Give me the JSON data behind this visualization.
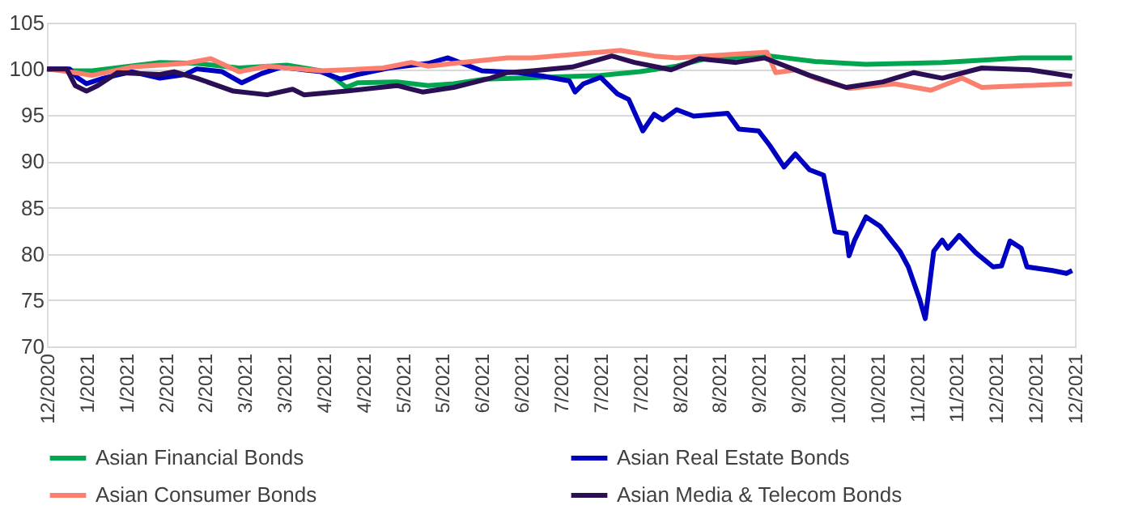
{
  "chart_data": {
    "type": "line",
    "xlim": [
      "2020-12-31",
      "2021-12-30"
    ],
    "xticks": [
      {
        "value": "2020-12-31",
        "label": "12/2020"
      },
      {
        "value": "2021-01-14",
        "label": "1/2021"
      },
      {
        "value": "2021-01-28",
        "label": "1/2021"
      },
      {
        "value": "2021-02-11",
        "label": "2/2021"
      },
      {
        "value": "2021-02-25",
        "label": "2/2021"
      },
      {
        "value": "2021-03-11",
        "label": "3/2021"
      },
      {
        "value": "2021-03-25",
        "label": "3/2021"
      },
      {
        "value": "2021-04-08",
        "label": "4/2021"
      },
      {
        "value": "2021-04-22",
        "label": "4/2021"
      },
      {
        "value": "2021-05-06",
        "label": "5/2021"
      },
      {
        "value": "2021-05-20",
        "label": "5/2021"
      },
      {
        "value": "2021-06-03",
        "label": "6/2021"
      },
      {
        "value": "2021-06-17",
        "label": "6/2021"
      },
      {
        "value": "2021-07-01",
        "label": "7/2021"
      },
      {
        "value": "2021-07-15",
        "label": "7/2021"
      },
      {
        "value": "2021-07-29",
        "label": "7/2021"
      },
      {
        "value": "2021-08-12",
        "label": "8/2021"
      },
      {
        "value": "2021-08-26",
        "label": "8/2021"
      },
      {
        "value": "2021-09-09",
        "label": "9/2021"
      },
      {
        "value": "2021-09-23",
        "label": "9/2021"
      },
      {
        "value": "2021-10-07",
        "label": "10/2021"
      },
      {
        "value": "2021-10-21",
        "label": "10/2021"
      },
      {
        "value": "2021-11-04",
        "label": "11/2021"
      },
      {
        "value": "2021-11-18",
        "label": "11/2021"
      },
      {
        "value": "2021-12-02",
        "label": "12/2021"
      },
      {
        "value": "2021-12-16",
        "label": "12/2021"
      },
      {
        "value": "2021-12-30",
        "label": "12/2021"
      }
    ],
    "ylim": [
      70,
      105
    ],
    "yticks": [
      70,
      75,
      80,
      85,
      90,
      95,
      100,
      105
    ],
    "grid": "y",
    "legend": "bottom",
    "line_style": "solid",
    "marker": "none",
    "series": [
      {
        "name": "Asian Financial Bonds",
        "color": "#00a650",
        "x": [
          "2020-12-31",
          "2021-01-08",
          "2021-01-16",
          "2021-02-09",
          "2021-02-22",
          "2021-03-09",
          "2021-03-26",
          "2021-04-07",
          "2021-04-12",
          "2021-04-16",
          "2021-04-20",
          "2021-05-04",
          "2021-05-15",
          "2021-05-24",
          "2021-06-04",
          "2021-06-16",
          "2021-07-15",
          "2021-07-29",
          "2021-08-11",
          "2021-08-21",
          "2021-09-13",
          "2021-09-29",
          "2021-10-17",
          "2021-11-13",
          "2021-12-11",
          "2021-12-29"
        ],
        "values": [
          100,
          99.8,
          99.8,
          100.7,
          100.6,
          100.1,
          100.4,
          99.8,
          99.0,
          98.0,
          98.5,
          98.6,
          98.2,
          98.4,
          98.9,
          99.0,
          99.3,
          99.7,
          100.3,
          101.1,
          101.4,
          100.8,
          100.5,
          100.7,
          101.2,
          101.2
        ]
      },
      {
        "name": "Asian Real Estate Bonds",
        "color": "#0000c0",
        "x": [
          "2020-12-31",
          "2021-01-08",
          "2021-01-11",
          "2021-01-14",
          "2021-01-20",
          "2021-01-30",
          "2021-02-09",
          "2021-02-18",
          "2021-02-22",
          "2021-03-03",
          "2021-03-10",
          "2021-03-17",
          "2021-03-24",
          "2021-04-01",
          "2021-04-07",
          "2021-04-14",
          "2021-04-20",
          "2021-05-01",
          "2021-05-15",
          "2021-05-22",
          "2021-06-03",
          "2021-06-16",
          "2021-06-25",
          "2021-07-04",
          "2021-07-06",
          "2021-07-09",
          "2021-07-15",
          "2021-07-21",
          "2021-07-25",
          "2021-07-30",
          "2021-08-03",
          "2021-08-06",
          "2021-08-11",
          "2021-08-17",
          "2021-08-29",
          "2021-09-02",
          "2021-09-09",
          "2021-09-13",
          "2021-09-18",
          "2021-09-22",
          "2021-09-27",
          "2021-10-02",
          "2021-10-06",
          "2021-10-10",
          "2021-10-11",
          "2021-10-13",
          "2021-10-17",
          "2021-10-22",
          "2021-10-29",
          "2021-11-01",
          "2021-11-05",
          "2021-11-07",
          "2021-11-08",
          "2021-11-10",
          "2021-11-13",
          "2021-11-15",
          "2021-11-19",
          "2021-11-25",
          "2021-12-01",
          "2021-12-04",
          "2021-12-07",
          "2021-12-11",
          "2021-12-13",
          "2021-12-22",
          "2021-12-27",
          "2021-12-29"
        ],
        "values": [
          100,
          100,
          99.0,
          98.4,
          99.0,
          99.7,
          99.0,
          99.4,
          100,
          99.7,
          98.5,
          99.5,
          100.2,
          99.9,
          99.7,
          98.9,
          99.4,
          100.1,
          100.6,
          101.2,
          99.8,
          99.6,
          99.2,
          98.7,
          97.5,
          98.4,
          99.1,
          97.3,
          96.7,
          93.3,
          95.1,
          94.5,
          95.6,
          94.9,
          95.2,
          93.5,
          93.3,
          91.7,
          89.4,
          90.8,
          89.1,
          88.5,
          82.4,
          82.2,
          79.8,
          81.5,
          84.0,
          83.0,
          80.3,
          78.6,
          75.1,
          73.0,
          75.4,
          80.3,
          81.5,
          80.6,
          82.0,
          80.1,
          78.6,
          78.7,
          81.4,
          80.6,
          78.6,
          78.2,
          77.9,
          78.2
        ]
      },
      {
        "name": "Asian Consumer Bonds",
        "color": "#fa7f6e",
        "x": [
          "2020-12-31",
          "2021-01-10",
          "2021-01-16",
          "2021-01-30",
          "2021-02-18",
          "2021-02-27",
          "2021-03-09",
          "2021-03-19",
          "2021-04-07",
          "2021-04-16",
          "2021-04-29",
          "2021-05-09",
          "2021-05-15",
          "2021-05-24",
          "2021-06-12",
          "2021-06-21",
          "2021-07-22",
          "2021-08-03",
          "2021-08-11",
          "2021-09-12",
          "2021-09-15",
          "2021-09-22",
          "2021-09-29",
          "2021-10-11",
          "2021-10-27",
          "2021-11-09",
          "2021-11-20",
          "2021-11-27",
          "2021-12-29"
        ],
        "values": [
          100,
          99.6,
          99.3,
          100.2,
          100.6,
          101.1,
          99.7,
          100.3,
          99.8,
          99.9,
          100.1,
          100.7,
          100.3,
          100.6,
          101.2,
          101.2,
          102.0,
          101.4,
          101.2,
          101.8,
          99.6,
          99.9,
          99.0,
          97.9,
          98.4,
          97.7,
          99.0,
          98.0,
          98.4
        ]
      },
      {
        "name": "Asian Media & Telecom Bonds",
        "color": "#2b0f54",
        "x": [
          "2020-12-31",
          "2021-01-07",
          "2021-01-10",
          "2021-01-14",
          "2021-01-18",
          "2021-01-25",
          "2021-02-09",
          "2021-02-14",
          "2021-02-22",
          "2021-03-07",
          "2021-03-19",
          "2021-03-28",
          "2021-04-01",
          "2021-04-16",
          "2021-05-04",
          "2021-05-13",
          "2021-05-24",
          "2021-06-06",
          "2021-06-12",
          "2021-06-21",
          "2021-07-05",
          "2021-07-19",
          "2021-07-27",
          "2021-08-09",
          "2021-08-19",
          "2021-09-01",
          "2021-09-11",
          "2021-09-27",
          "2021-10-10",
          "2021-10-23",
          "2021-11-03",
          "2021-11-13",
          "2021-11-27",
          "2021-12-14",
          "2021-12-29"
        ],
        "values": [
          100,
          100,
          98.2,
          97.6,
          98.2,
          99.6,
          99.4,
          99.7,
          99.0,
          97.6,
          97.2,
          97.8,
          97.2,
          97.6,
          98.2,
          97.5,
          98.0,
          99.0,
          99.6,
          99.8,
          100.2,
          101.4,
          100.7,
          99.9,
          101.1,
          100.7,
          101.2,
          99.3,
          98.0,
          98.6,
          99.6,
          99.0,
          100.1,
          99.9,
          99.2
        ]
      }
    ]
  }
}
